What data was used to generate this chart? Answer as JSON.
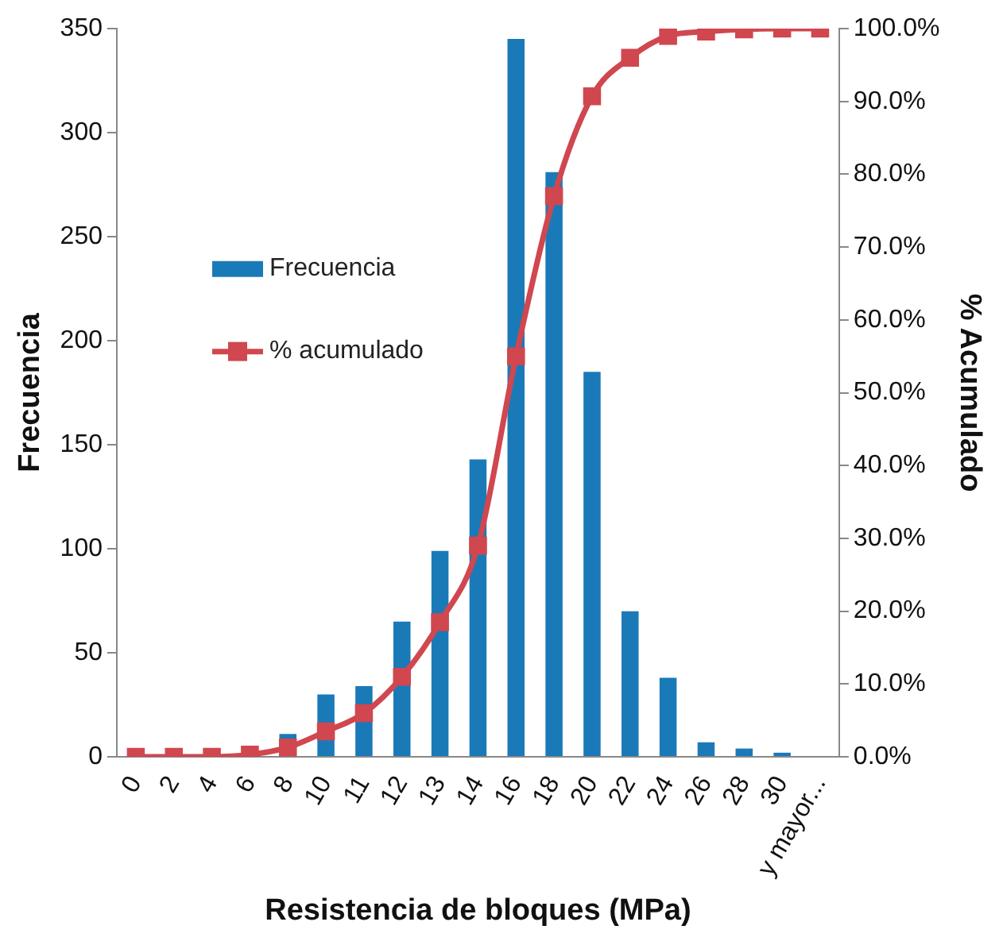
{
  "chart_data": {
    "type": "bar",
    "xlabel": "Resistencia de bloques (MPa)",
    "ylabel": "Frecuencia",
    "y2label": "% Acumulado",
    "categories": [
      "0",
      "2",
      "4",
      "6",
      "8",
      "10",
      "11",
      "12",
      "13",
      "14",
      "16",
      "18",
      "20",
      "22",
      "24",
      "26",
      "28",
      "30",
      "y mayor..."
    ],
    "series": [
      {
        "name": "Frecuencia",
        "color": "#1a7ab8",
        "values": [
          0,
          0,
          0,
          1,
          11,
          30,
          34,
          65,
          99,
          143,
          345,
          281,
          185,
          70,
          38,
          7,
          4,
          2,
          0
        ]
      },
      {
        "name": "% acumulado",
        "type": "line",
        "axis": "y2",
        "color": "#d0474f",
        "marker": "square",
        "values": [
          0,
          0,
          0,
          0.3,
          1.3,
          3.5,
          6,
          11,
          18.5,
          29,
          55,
          77,
          90.7,
          96,
          99,
          99.6,
          99.9,
          100,
          100
        ]
      }
    ],
    "ylim": [
      0,
      350
    ],
    "yticks": [
      0,
      50,
      100,
      150,
      200,
      250,
      300,
      350
    ],
    "y2lim": [
      0,
      100
    ],
    "y2ticks": [
      {
        "value": 0,
        "label": "0.0%"
      },
      {
        "value": 10,
        "label": "10.0%"
      },
      {
        "value": 20,
        "label": "20.0%"
      },
      {
        "value": 30,
        "label": "30.0%"
      },
      {
        "value": 40,
        "label": "40.0%"
      },
      {
        "value": 50,
        "label": "50.0%"
      },
      {
        "value": 60,
        "label": "60.0%"
      },
      {
        "value": 70,
        "label": "70.0%"
      },
      {
        "value": 80,
        "label": "80.0%"
      },
      {
        "value": 90,
        "label": "90.0%"
      },
      {
        "value": 100,
        "label": "100.0%"
      }
    ],
    "grid": false,
    "legend": "left"
  }
}
